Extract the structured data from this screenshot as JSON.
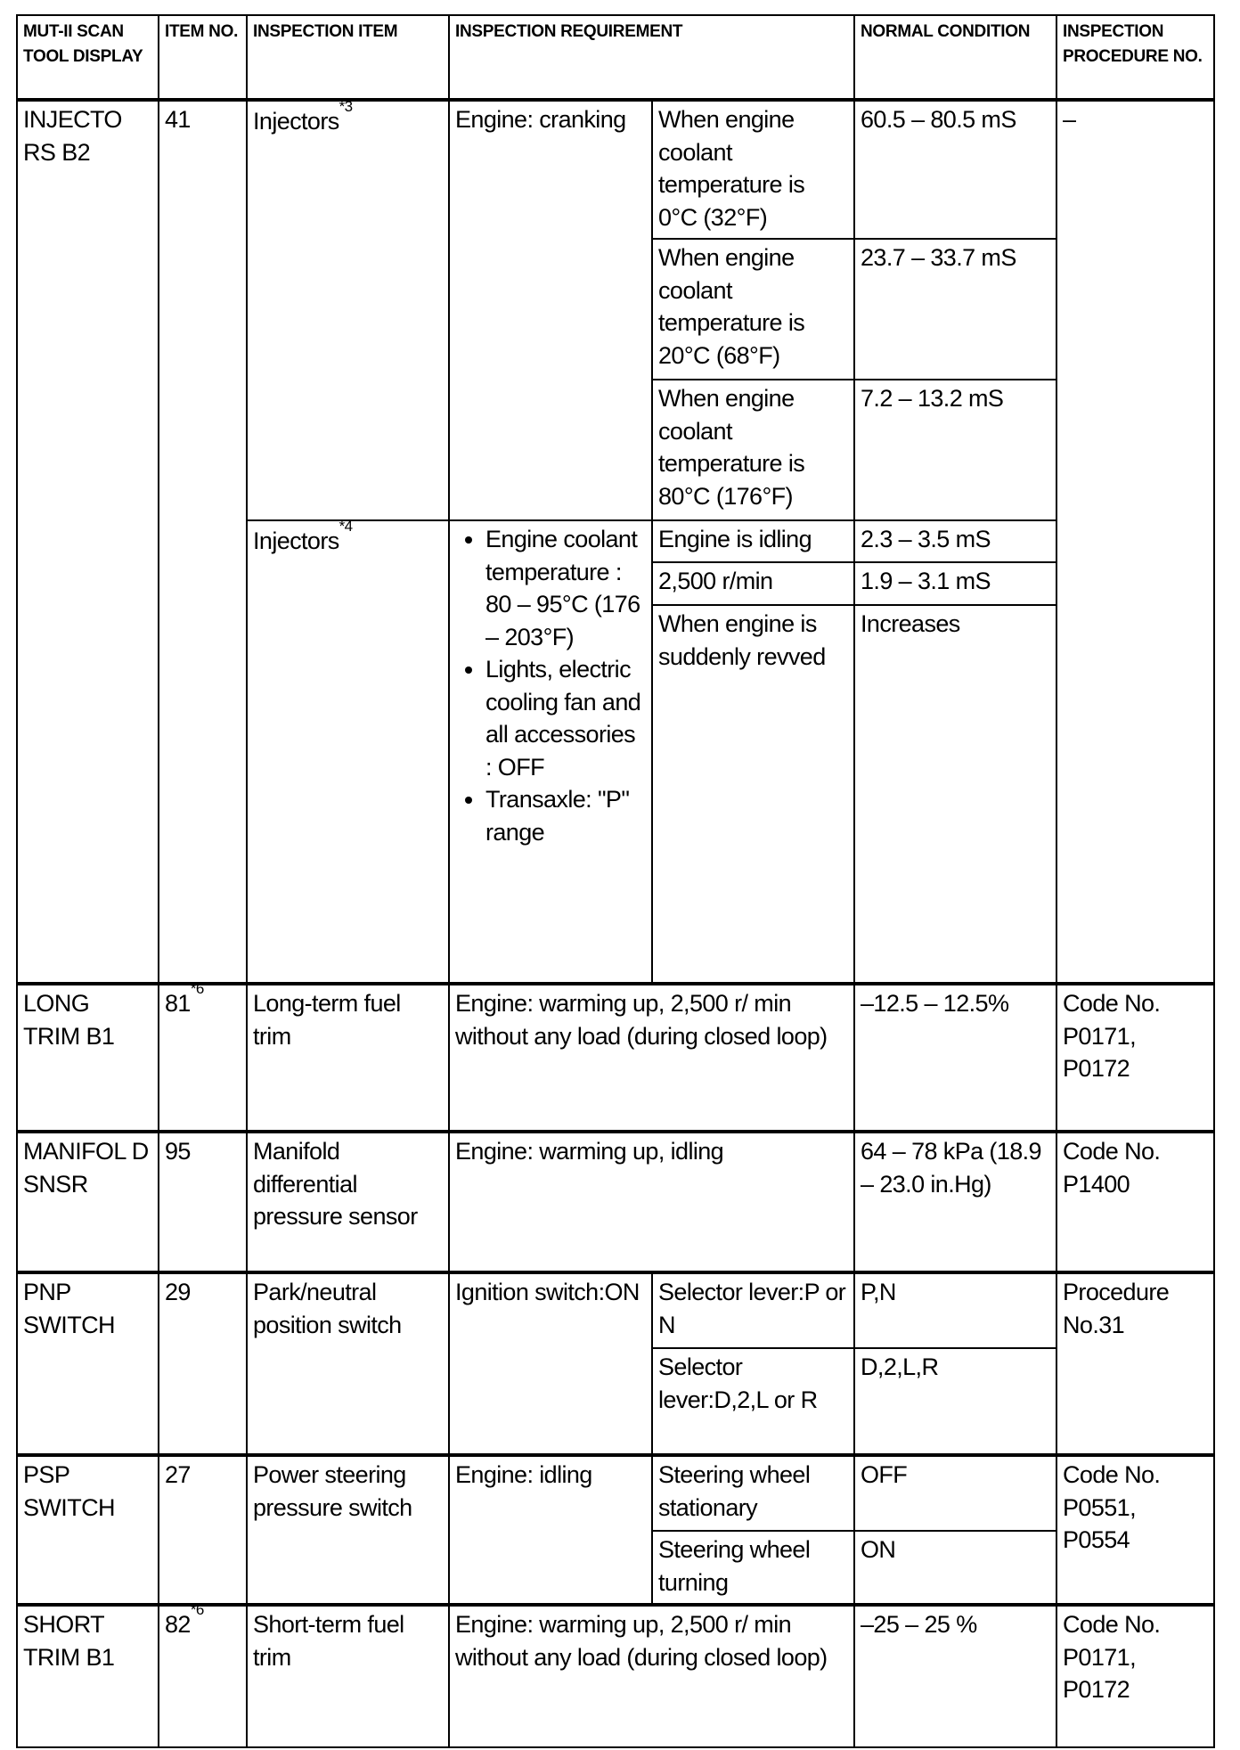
{
  "headers": [
    "MUT-II SCAN TOOL DISPLAY",
    "ITEM NO.",
    "INSPECTION ITEM",
    "INSPECTION REQUIREMENT",
    "NORMAL CONDITION",
    "INSPECTION PROCEDURE NO."
  ],
  "injectors": {
    "display": "INJECTO RS B2",
    "item_no": "41",
    "procedure": "–",
    "group1": {
      "item": "Injectors",
      "note": "*3",
      "requirement": "Engine: cranking",
      "rows": [
        {
          "condition": "When engine coolant temperature is 0°C (32°F)",
          "normal": "60.5 – 80.5 mS"
        },
        {
          "condition": "When engine coolant temperature is 20°C (68°F)",
          "normal": "23.7 – 33.7 mS"
        },
        {
          "condition": "When engine coolant temperature is 80°C (176°F)",
          "normal": "7.2 – 13.2 mS"
        }
      ]
    },
    "group2": {
      "item": "Injectors",
      "note": "*4",
      "requirements": [
        "Engine coolant temperature : 80 – 95°C (176 – 203°F)",
        "Lights, electric cooling fan and all accessories : OFF",
        "Transaxle: \"P\" range"
      ],
      "rows": [
        {
          "condition": "Engine is idling",
          "normal": "2.3 – 3.5 mS"
        },
        {
          "condition": "2,500 r/min",
          "normal": "1.9 – 3.1 mS"
        },
        {
          "condition": "When engine is suddenly revved",
          "normal": "Increases"
        }
      ]
    }
  },
  "long_trim": {
    "display": "LONG TRIM B1",
    "item_no": "81",
    "note": "*6",
    "item": "Long-term fuel trim",
    "requirement": "Engine: warming up, 2,500 r/ min without any load (during closed loop)",
    "normal": "–12.5 – 12.5%",
    "procedure": "Code No. P0171, P0172"
  },
  "manifold": {
    "display": "MANIFOL D SNSR",
    "item_no": "95",
    "item": "Manifold differential pressure sensor",
    "requirement": "Engine: warming up, idling",
    "normal": "64 – 78 kPa (18.9 – 23.0 in.Hg)",
    "procedure": "Code No. P1400"
  },
  "pnp": {
    "display": "PNP SWITCH",
    "item_no": "29",
    "item": "Park/neutral position switch",
    "requirement": "Ignition switch:ON",
    "procedure": "Procedure No.31",
    "rows": [
      {
        "condition": "Selector lever:P or N",
        "normal": "P,N"
      },
      {
        "condition": "Selector lever:D,2,L or R",
        "normal": "D,2,L,R"
      }
    ]
  },
  "psp": {
    "display": "PSP SWITCH",
    "item_no": "27",
    "item": "Power steering pressure switch",
    "requirement": "Engine: idling",
    "procedure": "Code No. P0551, P0554",
    "rows": [
      {
        "condition": "Steering wheel stationary",
        "normal": "OFF"
      },
      {
        "condition": "Steering wheel turning",
        "normal": "ON"
      }
    ]
  },
  "short_trim": {
    "display": "SHORT TRIM B1",
    "item_no": "82",
    "note": "*6",
    "item": "Short-term fuel trim",
    "requirement": "Engine: warming up, 2,500 r/ min without any load (during closed loop)",
    "normal": "–25 – 25 %",
    "procedure": "Code No. P0171, P0172"
  }
}
